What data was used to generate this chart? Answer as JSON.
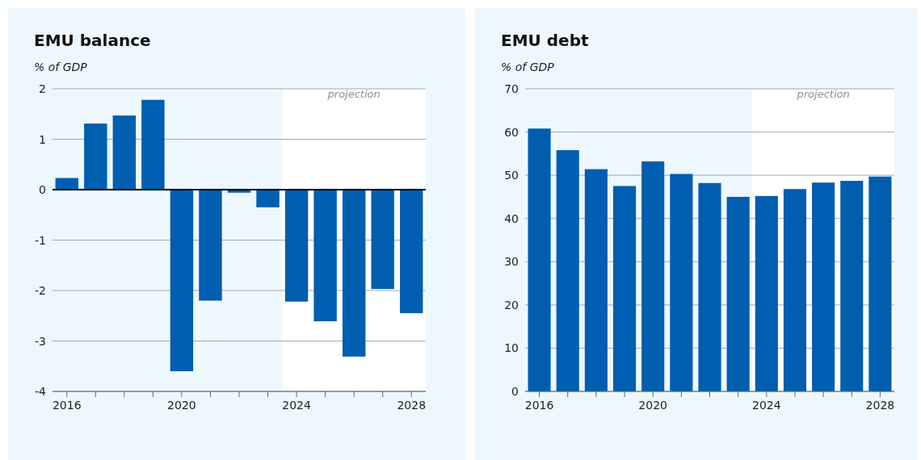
{
  "chart_data": [
    {
      "type": "bar",
      "title": "EMU balance",
      "ylabel": "% of GDP",
      "x": [
        2016,
        2017,
        2018,
        2019,
        2020,
        2021,
        2022,
        2023,
        2024,
        2025,
        2026,
        2027,
        2028
      ],
      "values": [
        0.23,
        1.31,
        1.47,
        1.78,
        -3.6,
        -2.2,
        -0.06,
        -0.35,
        -2.22,
        -2.61,
        -3.31,
        -1.97,
        -2.45
      ],
      "color": "#005eb0",
      "xlim": [
        2015.5,
        2028.5
      ],
      "xticks": [
        2016,
        {
          "value": 2017,
          "label": null
        },
        {
          "value": 2018,
          "label": null
        },
        {
          "value": 2019,
          "label": null
        },
        2020,
        {
          "value": 2021,
          "label": null
        },
        {
          "value": 2022,
          "label": null
        },
        {
          "value": 2023,
          "label": null
        },
        2024,
        {
          "value": 2025,
          "label": null
        },
        {
          "value": 2026,
          "label": null
        },
        {
          "value": 2027,
          "label": null
        },
        2028
      ],
      "ylim": [
        -4,
        2
      ],
      "yticks": [
        -4,
        -3,
        -2,
        -1,
        0,
        1,
        2
      ],
      "grid": "y",
      "bands": [
        {
          "axis": "x",
          "from": 2023.5,
          "to": 2028.5,
          "label": "projection",
          "color": "#ffffff"
        }
      ],
      "ref_lines": [
        {
          "axis": "y",
          "value": 0,
          "color": "#000000"
        }
      ]
    },
    {
      "type": "bar",
      "title": "EMU debt",
      "ylabel": "% of GDP",
      "x": [
        2016,
        2017,
        2018,
        2019,
        2020,
        2021,
        2022,
        2023,
        2024,
        2025,
        2026,
        2027,
        2028
      ],
      "values": [
        60.8,
        55.8,
        51.4,
        47.5,
        53.2,
        50.3,
        48.2,
        45.0,
        45.2,
        46.8,
        48.3,
        48.7,
        49.7
      ],
      "color": "#005eb0",
      "xlim": [
        2015.5,
        2028.5
      ],
      "xticks": [
        2016,
        {
          "value": 2017,
          "label": null
        },
        {
          "value": 2018,
          "label": null
        },
        {
          "value": 2019,
          "label": null
        },
        2020,
        {
          "value": 2021,
          "label": null
        },
        {
          "value": 2022,
          "label": null
        },
        {
          "value": 2023,
          "label": null
        },
        2024,
        {
          "value": 2025,
          "label": null
        },
        {
          "value": 2026,
          "label": null
        },
        {
          "value": 2027,
          "label": null
        },
        2028
      ],
      "ylim": [
        0,
        70
      ],
      "yticks": [
        0,
        10,
        20,
        30,
        40,
        50,
        60,
        70
      ],
      "grid": "y",
      "bands": [
        {
          "axis": "x",
          "from": 2023.5,
          "to": 2028.5,
          "label": "projection",
          "color": "#ffffff"
        }
      ]
    }
  ]
}
